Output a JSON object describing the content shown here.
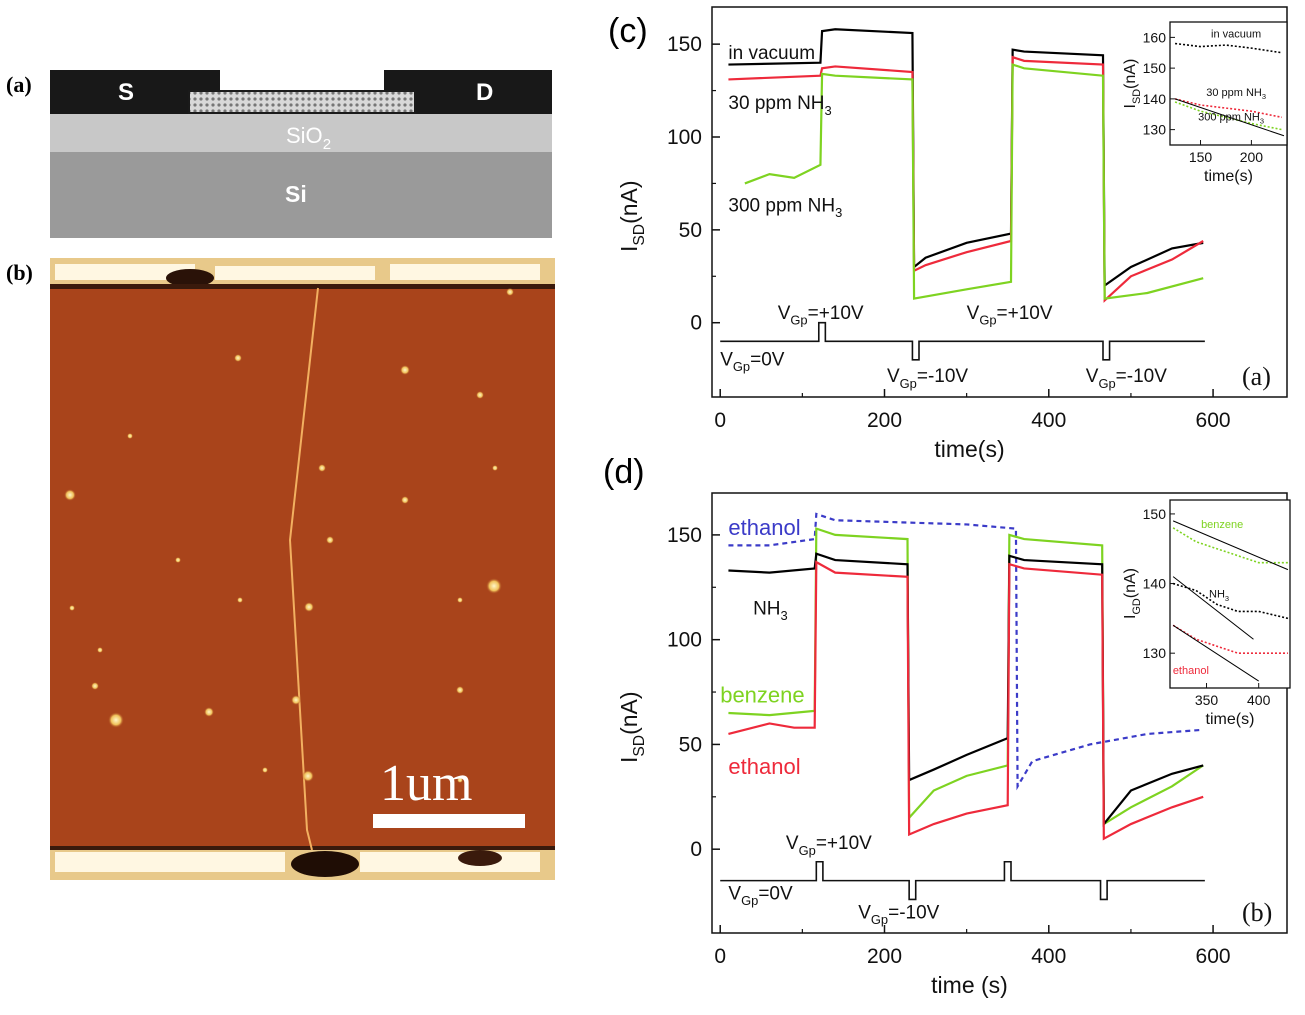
{
  "panel_labels": {
    "a": "(a)",
    "b": "(b)",
    "c": "(c)",
    "d": "(d)"
  },
  "device": {
    "source": "S",
    "drain": "D",
    "oxide": "SiO",
    "oxide_sub": "2",
    "substrate": "Si"
  },
  "afm": {
    "scalebar_label": "1um"
  },
  "colors": {
    "black": "#000000",
    "red": "#ee2a3b",
    "green": "#7ed321",
    "blue": "#3b3bc8",
    "afm_bg": "#a9441b"
  },
  "chart_data": [
    {
      "id": "c",
      "type": "line",
      "title": "(c)",
      "corner_label": "(a)",
      "xlabel": "time(s)",
      "ylabel": "I",
      "ylabel_sub": "SD",
      "ylabel_tail": "(nA)",
      "xlim": [
        -10,
        690
      ],
      "ylim": [
        -40,
        170
      ],
      "xticks": [
        0,
        200,
        400,
        600
      ],
      "yticks": [
        0,
        50,
        100,
        150
      ],
      "series": [
        {
          "name": "in vacuum",
          "color": "#000000",
          "points": [
            [
              10,
              139
            ],
            [
              122,
              140
            ],
            [
              124,
              157
            ],
            [
              140,
              158
            ],
            [
              234,
              156
            ],
            [
              236,
              30
            ],
            [
              250,
              35
            ],
            [
              300,
              43
            ],
            [
              354,
              48
            ],
            [
              356,
              147
            ],
            [
              370,
              146
            ],
            [
              466,
              144
            ],
            [
              468,
              20
            ],
            [
              500,
              30
            ],
            [
              550,
              40
            ],
            [
              588,
              43
            ]
          ]
        },
        {
          "name": "30 ppm NH3",
          "color": "#ee2a3b",
          "points": [
            [
              10,
              131
            ],
            [
              122,
              133
            ],
            [
              124,
              137
            ],
            [
              140,
              138
            ],
            [
              234,
              135
            ],
            [
              236,
              28
            ],
            [
              250,
              31
            ],
            [
              300,
              38
            ],
            [
              354,
              44
            ],
            [
              356,
              143
            ],
            [
              370,
              141
            ],
            [
              466,
              139
            ],
            [
              468,
              12
            ],
            [
              500,
              25
            ],
            [
              550,
              34
            ],
            [
              588,
              44
            ]
          ]
        },
        {
          "name": "300 ppm NH3",
          "color": "#7ed321",
          "points": [
            [
              30,
              75
            ],
            [
              60,
              80
            ],
            [
              90,
              78
            ],
            [
              122,
              85
            ],
            [
              124,
              134
            ],
            [
              140,
              133
            ],
            [
              234,
              131
            ],
            [
              236,
              13
            ],
            [
              300,
              18
            ],
            [
              354,
              22
            ],
            [
              356,
              139
            ],
            [
              370,
              137
            ],
            [
              466,
              133
            ],
            [
              468,
              13
            ],
            [
              520,
              16
            ],
            [
              588,
              24
            ]
          ]
        }
      ],
      "annotations": [
        {
          "text": "in vacuum",
          "x": 10,
          "y": 142
        },
        {
          "text": "30 ppm NH",
          "sub": "3",
          "x": 10,
          "y": 115
        },
        {
          "text": "300 ppm NH",
          "sub": "3",
          "x": 10,
          "y": 60
        },
        {
          "text": "V",
          "sub": "Gp",
          "tail": "=+10V",
          "x": 70,
          "y": 2
        },
        {
          "text": "V",
          "sub": "Gp",
          "tail": "=+10V",
          "x": 300,
          "y": 2
        },
        {
          "text": "V",
          "sub": "Gp",
          "tail": "=0V",
          "x": 0,
          "y": -23
        },
        {
          "text": "V",
          "sub": "Gp",
          "tail": "=-10V",
          "x": 203,
          "y": -32
        },
        {
          "text": "V",
          "sub": "Gp",
          "tail": "=-10V",
          "x": 445,
          "y": -32
        }
      ],
      "gate_pulse": {
        "baseline": -10,
        "up": [
          [
            120,
            128
          ]
        ],
        "down": [
          [
            234,
            242
          ],
          [
            466,
            474
          ]
        ],
        "end": 590,
        "height": 10
      },
      "inset": {
        "xlabel": "time(s)",
        "ylabel": "I",
        "ylabel_sub": "SD",
        "ylabel_tail": "(nA)",
        "xlim": [
          120,
          235
        ],
        "ylim": [
          125,
          165
        ],
        "xticks": [
          150,
          200
        ],
        "yticks": [
          130,
          140,
          150,
          160
        ],
        "series": [
          {
            "name": "in vacuum",
            "color": "#000000",
            "points": [
              [
                125,
                158
              ],
              [
                150,
                157
              ],
              [
                175,
                157.5
              ],
              [
                200,
                156.5
              ],
              [
                230,
                155
              ]
            ]
          },
          {
            "name": "30 ppm NH3",
            "color": "#ee2a3b",
            "points": [
              [
                125,
                140
              ],
              [
                150,
                138
              ],
              [
                175,
                137
              ],
              [
                200,
                136
              ],
              [
                230,
                134
              ]
            ]
          },
          {
            "name": "300 ppm NH3",
            "color": "#7ed321",
            "points": [
              [
                125,
                139
              ],
              [
                150,
                136
              ],
              [
                175,
                134
              ],
              [
                200,
                132
              ],
              [
                230,
                130
              ]
            ]
          }
        ],
        "fit": {
          "color": "#000000",
          "points": [
            [
              125,
              140
            ],
            [
              232,
              128
            ]
          ]
        },
        "labels": [
          {
            "text": "in vacuum",
            "x": 185,
            "y": 160
          },
          {
            "text": "30 ppm NH",
            "sub": "3",
            "x": 185,
            "y": 141
          },
          {
            "text": "300 ppm NH",
            "sub": "3",
            "x": 180,
            "y": 133
          }
        ]
      }
    },
    {
      "id": "d",
      "type": "line",
      "title": "(d)",
      "corner_label": "(b)",
      "xlabel": "time (s)",
      "ylabel": "I",
      "ylabel_sub": "SD",
      "ylabel_tail": "(nA)",
      "xlim": [
        -10,
        690
      ],
      "ylim": [
        -40,
        170
      ],
      "xticks": [
        0,
        200,
        400,
        600
      ],
      "yticks": [
        0,
        50,
        100,
        150
      ],
      "series": [
        {
          "name": "ethanol (dashed)",
          "color": "#3b3bc8",
          "dashed": true,
          "points": [
            [
              10,
              145
            ],
            [
              60,
              145
            ],
            [
              115,
              148
            ],
            [
              117,
              160
            ],
            [
              140,
              157
            ],
            [
              300,
              155
            ],
            [
              360,
              153
            ],
            [
              362,
              30
            ],
            [
              380,
              42
            ],
            [
              450,
              50
            ],
            [
              520,
              55
            ],
            [
              588,
              57
            ]
          ]
        },
        {
          "name": "benzene",
          "color": "#7ed321",
          "points": [
            [
              10,
              65
            ],
            [
              60,
              64
            ],
            [
              115,
              66
            ],
            [
              117,
              153
            ],
            [
              140,
              150
            ],
            [
              228,
              148
            ],
            [
              230,
              15
            ],
            [
              260,
              28
            ],
            [
              300,
              35
            ],
            [
              350,
              40
            ],
            [
              352,
              150
            ],
            [
              370,
              148
            ],
            [
              465,
              145
            ],
            [
              467,
              12
            ],
            [
              500,
              20
            ],
            [
              550,
              30
            ],
            [
              588,
              40
            ]
          ]
        },
        {
          "name": "NH3",
          "color": "#000000",
          "points": [
            [
              10,
              133
            ],
            [
              60,
              132
            ],
            [
              115,
              134
            ],
            [
              117,
              141
            ],
            [
              140,
              138
            ],
            [
              228,
              136
            ],
            [
              230,
              33
            ],
            [
              260,
              38
            ],
            [
              300,
              45
            ],
            [
              350,
              53
            ],
            [
              352,
              140
            ],
            [
              370,
              138
            ],
            [
              465,
              136
            ],
            [
              467,
              12
            ],
            [
              500,
              28
            ],
            [
              550,
              36
            ],
            [
              588,
              40
            ]
          ]
        },
        {
          "name": "ethanol",
          "color": "#ee2a3b",
          "points": [
            [
              10,
              55
            ],
            [
              60,
              60
            ],
            [
              90,
              58
            ],
            [
              115,
              58
            ],
            [
              117,
              137
            ],
            [
              140,
              132
            ],
            [
              228,
              130
            ],
            [
              230,
              7
            ],
            [
              260,
              12
            ],
            [
              300,
              17
            ],
            [
              350,
              21
            ],
            [
              352,
              136
            ],
            [
              370,
              134
            ],
            [
              465,
              131
            ],
            [
              467,
              5
            ],
            [
              500,
              12
            ],
            [
              550,
              20
            ],
            [
              588,
              25
            ]
          ]
        }
      ],
      "annotations": [
        {
          "text": "ethanol",
          "color": "#3b3bc8",
          "x": 10,
          "y": 150
        },
        {
          "text": "NH",
          "sub": "3",
          "x": 40,
          "y": 112
        },
        {
          "text": "benzene",
          "color": "#7ed321",
          "x": 0,
          "y": 70
        },
        {
          "text": "ethanol",
          "color": "#ee2a3b",
          "x": 10,
          "y": 36
        },
        {
          "text": "V",
          "sub": "Gp",
          "tail": "=+10V",
          "x": 80,
          "y": 0
        },
        {
          "text": "V",
          "sub": "Gp",
          "tail": "=0V",
          "x": 10,
          "y": -24
        },
        {
          "text": "V",
          "sub": "Gp",
          "tail": "=-10V",
          "x": 168,
          "y": -33
        }
      ],
      "gate_pulse": {
        "baseline": -15,
        "up": [
          [
            117,
            125
          ],
          [
            346,
            354
          ]
        ],
        "down": [
          [
            230,
            238
          ],
          [
            463,
            471
          ]
        ],
        "end": 590,
        "height": 9
      },
      "inset": {
        "xlabel": "time(s)",
        "ylabel": "I",
        "ylabel_sub": "GD",
        "ylabel_tail": "(nA)",
        "xlim": [
          315,
          430
        ],
        "ylim": [
          125,
          152
        ],
        "xticks": [
          350,
          400
        ],
        "yticks": [
          130,
          140,
          150
        ],
        "series": [
          {
            "name": "benzene",
            "color": "#7ed321",
            "points": [
              [
                318,
                148
              ],
              [
                340,
                146
              ],
              [
                360,
                145
              ],
              [
                380,
                144
              ],
              [
                400,
                143
              ],
              [
                428,
                143
              ]
            ]
          },
          {
            "name": "NH3",
            "color": "#000000",
            "points": [
              [
                318,
                140
              ],
              [
                340,
                139
              ],
              [
                360,
                137
              ],
              [
                380,
                136
              ],
              [
                400,
                136
              ],
              [
                428,
                135
              ]
            ]
          },
          {
            "name": "ethanol",
            "color": "#ee2a3b",
            "points": [
              [
                318,
                134
              ],
              [
                340,
                132
              ],
              [
                360,
                131
              ],
              [
                380,
                130
              ],
              [
                400,
                130
              ],
              [
                428,
                130
              ]
            ]
          }
        ],
        "fits": [
          {
            "color": "#000000",
            "points": [
              [
                318,
                149
              ],
              [
                428,
                142
              ]
            ]
          },
          {
            "color": "#000000",
            "points": [
              [
                318,
                141
              ],
              [
                395,
                132
              ]
            ]
          },
          {
            "color": "#000000",
            "points": [
              [
                318,
                134
              ],
              [
                400,
                126
              ]
            ]
          }
        ],
        "labels": [
          {
            "text": "benzene",
            "color": "#7ed321",
            "x": 365,
            "y": 148
          },
          {
            "text": "NH",
            "sub": "3",
            "x": 362,
            "y": 138
          },
          {
            "text": "ethanol",
            "color": "#ee2a3b",
            "x": 335,
            "y": 127
          }
        ]
      }
    }
  ]
}
